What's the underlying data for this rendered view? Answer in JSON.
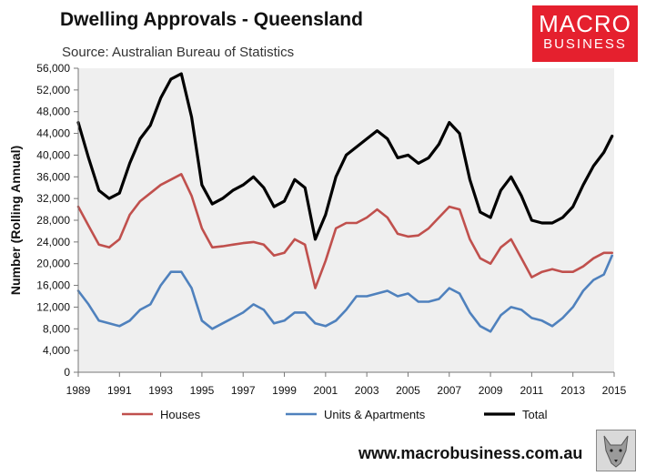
{
  "header": {
    "title": "Dwelling Approvals - Queensland",
    "source": "Source: Australian Bureau of Statistics"
  },
  "logo": {
    "line1": "MACRO",
    "line2": "BUSINESS",
    "bg": "#e5202e"
  },
  "footer": {
    "url": "www.macrobusiness.com.au"
  },
  "chart_data": {
    "type": "line",
    "title": "Dwelling Approvals - Queensland",
    "xlabel": "",
    "ylabel": "Number (Rolling Annual)",
    "xlim": [
      1989,
      2015
    ],
    "ylim": [
      0,
      56000
    ],
    "x_ticks": [
      1989,
      1991,
      1993,
      1995,
      1997,
      1999,
      2001,
      2003,
      2005,
      2007,
      2009,
      2011,
      2013,
      2015
    ],
    "x_tick_labels": [
      "1989",
      "1991",
      "1993",
      "1995",
      "1997",
      "1999",
      "2001",
      "2003",
      "2005",
      "2007",
      "2009",
      "2011",
      "2013",
      "2015"
    ],
    "y_ticks": [
      0,
      4000,
      8000,
      12000,
      16000,
      20000,
      24000,
      28000,
      32000,
      36000,
      40000,
      44000,
      48000,
      52000,
      56000
    ],
    "y_tick_labels": [
      "0",
      "4,000",
      "8,000",
      "12,000",
      "16,000",
      "20,000",
      "24,000",
      "28,000",
      "32,000",
      "36,000",
      "40,000",
      "44,000",
      "48,000",
      "52,000",
      "56,000"
    ],
    "grid": false,
    "legend_position": "bottom",
    "series": [
      {
        "name": "Houses",
        "color": "#c0504d",
        "width": 2.6,
        "x": [
          1989,
          1989.5,
          1990,
          1990.5,
          1991,
          1991.5,
          1992,
          1992.5,
          1993,
          1993.5,
          1994,
          1994.5,
          1995,
          1995.5,
          1996,
          1996.5,
          1997,
          1997.5,
          1998,
          1998.5,
          1999,
          1999.5,
          2000,
          2000.5,
          2001,
          2001.5,
          2002,
          2002.5,
          2003,
          2003.5,
          2004,
          2004.5,
          2005,
          2005.5,
          2006,
          2006.5,
          2007,
          2007.5,
          2008,
          2008.5,
          2009,
          2009.5,
          2010,
          2010.5,
          2011,
          2011.5,
          2012,
          2012.5,
          2013,
          2013.5,
          2014,
          2014.5,
          2014.9
        ],
        "values": [
          30500,
          27000,
          23500,
          23000,
          24500,
          29000,
          31500,
          33000,
          34500,
          35500,
          36500,
          32500,
          26500,
          23000,
          23200,
          23500,
          23800,
          24000,
          23500,
          21500,
          22000,
          24500,
          23500,
          15500,
          20500,
          26500,
          27500,
          27500,
          28500,
          30000,
          28500,
          25500,
          25000,
          25200,
          26500,
          28500,
          30500,
          30000,
          24500,
          21000,
          20000,
          23000,
          24500,
          21000,
          17500,
          18500,
          19000,
          18500,
          18500,
          19500,
          21000,
          22000,
          22000
        ]
      },
      {
        "name": "Units & Apartments",
        "color": "#4f81bd",
        "width": 2.6,
        "x": [
          1989,
          1989.5,
          1990,
          1990.5,
          1991,
          1991.5,
          1992,
          1992.5,
          1993,
          1993.5,
          1994,
          1994.5,
          1995,
          1995.5,
          1996,
          1996.5,
          1997,
          1997.5,
          1998,
          1998.5,
          1999,
          1999.5,
          2000,
          2000.5,
          2001,
          2001.5,
          2002,
          2002.5,
          2003,
          2003.5,
          2004,
          2004.5,
          2005,
          2005.5,
          2006,
          2006.5,
          2007,
          2007.5,
          2008,
          2008.5,
          2009,
          2009.5,
          2010,
          2010.5,
          2011,
          2011.5,
          2012,
          2012.5,
          2013,
          2013.5,
          2014,
          2014.5,
          2014.9
        ],
        "values": [
          15000,
          12500,
          9500,
          9000,
          8500,
          9500,
          11500,
          12500,
          16000,
          18500,
          18500,
          15500,
          9500,
          8000,
          9000,
          10000,
          11000,
          12500,
          11500,
          9000,
          9500,
          11000,
          11000,
          9000,
          8500,
          9500,
          11500,
          14000,
          14000,
          14500,
          15000,
          14000,
          14500,
          13000,
          13000,
          13500,
          15500,
          14500,
          11000,
          8500,
          7500,
          10500,
          12000,
          11500,
          10000,
          9500,
          8500,
          10000,
          12000,
          15000,
          17000,
          18000,
          21500
        ]
      },
      {
        "name": "Total",
        "color": "#000000",
        "width": 3.2,
        "x": [
          1989,
          1989.5,
          1990,
          1990.5,
          1991,
          1991.5,
          1992,
          1992.5,
          1993,
          1993.5,
          1994,
          1994.5,
          1995,
          1995.5,
          1996,
          1996.5,
          1997,
          1997.5,
          1998,
          1998.5,
          1999,
          1999.5,
          2000,
          2000.5,
          2001,
          2001.5,
          2002,
          2002.5,
          2003,
          2003.5,
          2004,
          2004.5,
          2005,
          2005.5,
          2006,
          2006.5,
          2007,
          2007.5,
          2008,
          2008.5,
          2009,
          2009.5,
          2010,
          2010.5,
          2011,
          2011.5,
          2012,
          2012.5,
          2013,
          2013.5,
          2014,
          2014.5,
          2014.9
        ],
        "values": [
          46000,
          39500,
          33500,
          32000,
          33000,
          38500,
          43000,
          45500,
          50500,
          54000,
          55000,
          47000,
          34500,
          31000,
          32000,
          33500,
          34500,
          36000,
          34000,
          30500,
          31500,
          35500,
          34000,
          24500,
          29000,
          36000,
          40000,
          41500,
          43000,
          44500,
          43000,
          39500,
          40000,
          38500,
          39500,
          42000,
          46000,
          44000,
          35500,
          29500,
          28500,
          33500,
          36000,
          32500,
          28000,
          27500,
          27500,
          28500,
          30500,
          34500,
          38000,
          40500,
          43500
        ]
      }
    ]
  }
}
